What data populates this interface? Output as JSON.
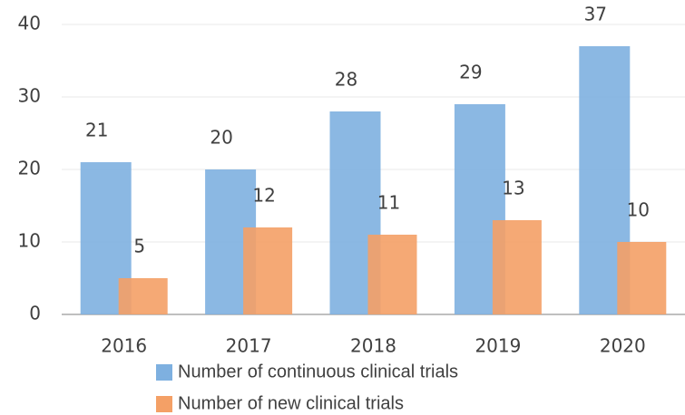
{
  "chart_data": {
    "type": "bar",
    "categories": [
      "2016",
      "2017",
      "2018",
      "2019",
      "2020"
    ],
    "series": [
      {
        "name": "Number of continuous clinical trials",
        "color": "#7eb0e0",
        "values": [
          21,
          20,
          28,
          29,
          37
        ]
      },
      {
        "name": "Number of new clinical trials",
        "color": "#f4a066",
        "values": [
          5,
          12,
          11,
          13,
          10
        ]
      }
    ],
    "ylim": [
      0,
      40
    ],
    "yticks": [
      0,
      10,
      20,
      30,
      40
    ],
    "grid": true
  }
}
